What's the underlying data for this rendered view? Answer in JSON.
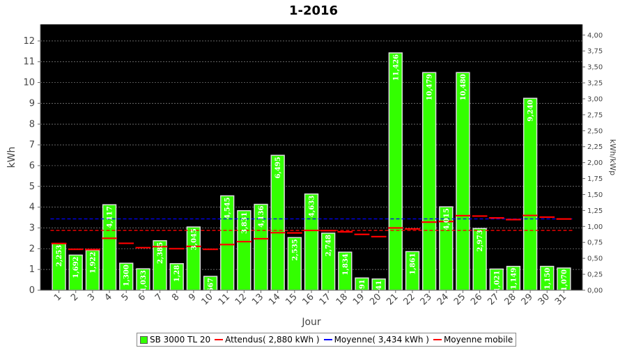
{
  "chart_data": {
    "type": "bar",
    "title": "1-2016",
    "xlabel": "Jour",
    "ylabel": "kWh",
    "ylabel_right": "kWh/kWp",
    "ylim": [
      0,
      12.8
    ],
    "yticks": [
      0,
      1,
      2,
      3,
      4,
      5,
      6,
      7,
      8,
      9,
      10,
      11,
      12
    ],
    "ylim_right": [
      0,
      4.1667
    ],
    "yticks_right": [
      "0,00",
      "0,25",
      "0,50",
      "0,75",
      "1,00",
      "1,25",
      "1,50",
      "1,75",
      "2,00",
      "2,25",
      "2,50",
      "2,75",
      "3,00",
      "3,25",
      "3,50",
      "3,75",
      "4,00"
    ],
    "grid": true,
    "legend_position": "bottom",
    "categories": [
      "1",
      "2",
      "3",
      "4",
      "5",
      "6",
      "7",
      "8",
      "9",
      "10",
      "11",
      "12",
      "13",
      "14",
      "15",
      "16",
      "17",
      "18",
      "19",
      "20",
      "21",
      "22",
      "23",
      "24",
      "25",
      "26",
      "27",
      "28",
      "29",
      "30",
      "31"
    ],
    "series": [
      {
        "name": "SB 3000 TL 20",
        "type": "bar",
        "color": "#33ff00",
        "values": [
          2.253,
          1.692,
          1.922,
          4.117,
          1.3,
          1.033,
          2.385,
          1.28,
          3.045,
          0.667,
          4.545,
          3.831,
          4.136,
          6.495,
          2.535,
          4.633,
          2.748,
          1.834,
          0.591,
          0.541,
          11.426,
          1.861,
          10.479,
          4.015,
          10.48,
          2.973,
          1.021,
          1.149,
          9.24,
          1.15,
          1.07
        ],
        "labels": [
          "2,253",
          "1,692",
          "1,922",
          "4,117",
          "1,300",
          "1,033",
          "2,385",
          "1,28",
          "3,045",
          "0,667",
          "4,545",
          "3,831",
          "4,136",
          "6,495",
          "2,535",
          "4,633",
          "2,748",
          "1,834",
          "0,591",
          "0,541",
          "11,426",
          "1,861",
          "10,479",
          "4,015",
          "10,480",
          "2,973",
          "1,021",
          "1,149",
          "9,240",
          "1,150",
          "1,070"
        ]
      },
      {
        "name": "Attendus( 2,880 kWh )",
        "type": "line",
        "color": "#ff0000",
        "value": 2.88
      },
      {
        "name": "Moyenne( 3,434 kWh )",
        "type": "line",
        "color": "#0000ff",
        "value": 3.434
      },
      {
        "name": "Moyenne mobile",
        "type": "step",
        "color": "#ff0000",
        "values": [
          2.25,
          1.97,
          1.96,
          2.5,
          2.26,
          2.05,
          2.1,
          2.0,
          2.11,
          1.97,
          2.2,
          2.34,
          2.48,
          2.77,
          2.76,
          2.88,
          2.87,
          2.81,
          2.69,
          2.58,
          3.0,
          2.95,
          3.28,
          3.31,
          3.59,
          3.57,
          3.48,
          3.4,
          3.6,
          3.52,
          3.43
        ]
      }
    ]
  }
}
